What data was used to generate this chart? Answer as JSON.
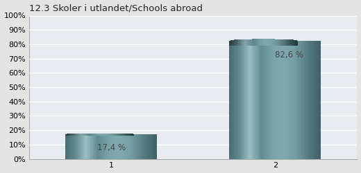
{
  "title": "12.3 Skoler i utlandet/Schools abroad",
  "categories": [
    "1",
    "2"
  ],
  "values": [
    17.4,
    82.6
  ],
  "labels": [
    "17,4 %",
    "82,6 %"
  ],
  "background_color": "#e4e4e4",
  "plot_bg_color": "#e8ecf0",
  "ylim": [
    0,
    100
  ],
  "yticks": [
    0,
    10,
    20,
    30,
    40,
    50,
    60,
    70,
    80,
    90,
    100
  ],
  "ytick_labels": [
    "0%",
    "10%",
    "20%",
    "30%",
    "40%",
    "50%",
    "60%",
    "70%",
    "80%",
    "90%",
    "100%"
  ],
  "title_fontsize": 9.5,
  "label_fontsize": 8.5,
  "tick_fontsize": 8,
  "bar_width": 0.28,
  "x_positions": [
    0.25,
    0.75
  ],
  "xlim": [
    0,
    1
  ]
}
